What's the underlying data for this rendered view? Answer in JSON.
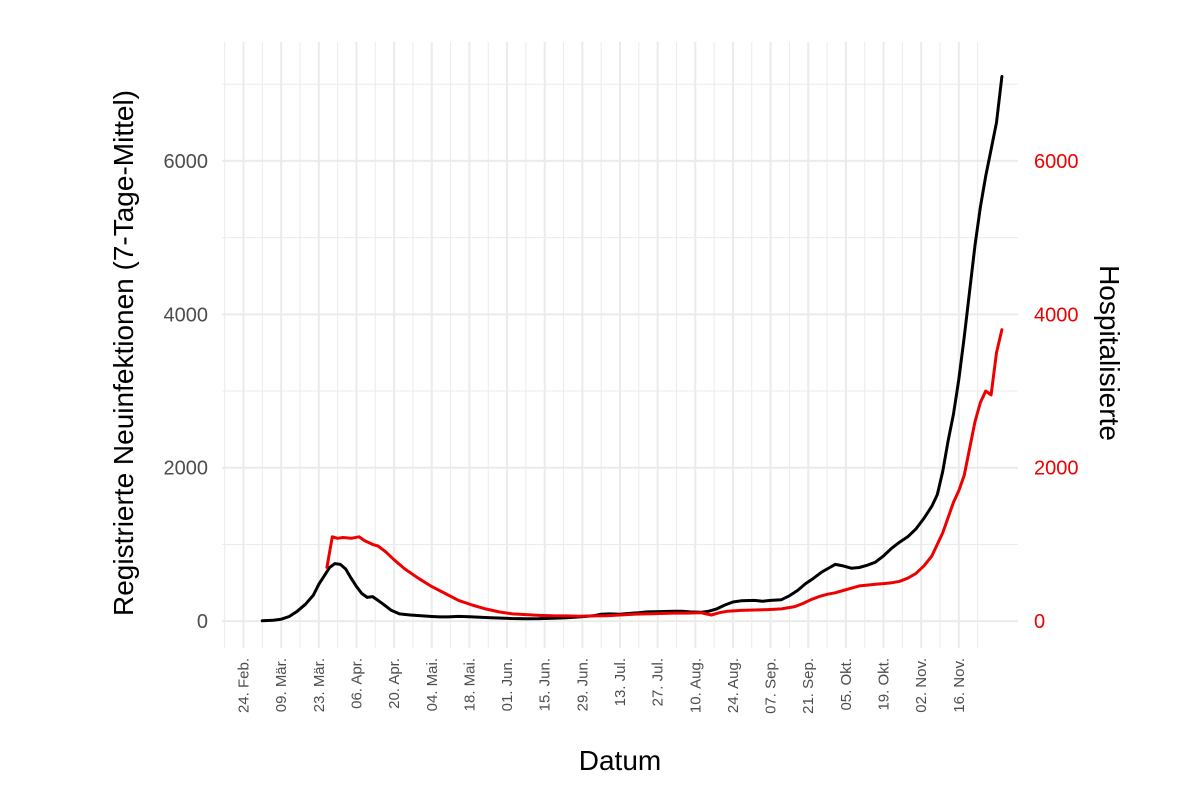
{
  "chart_data": {
    "type": "line",
    "xlabel": "Datum",
    "ylabel_left": "Registrierte Neuinfektionen (7-Tage-Mittel)",
    "ylabel_right": "Hospitalisierte",
    "ylim": [
      -350,
      7550
    ],
    "y_ticks": [
      0,
      2000,
      4000,
      6000
    ],
    "x_ticks": [
      "24. Feb.",
      "09. Mär.",
      "23. Mär.",
      "06. Apr.",
      "20. Apr.",
      "04. Mai.",
      "18. Mai.",
      "01. Jun.",
      "15. Jun.",
      "29. Jun.",
      "13. Jul.",
      "27. Jul.",
      "10. Aug.",
      "24. Aug.",
      "07. Sep.",
      "21. Sep.",
      "05. Okt.",
      "19. Okt.",
      "02. Nov.",
      "16. Nov."
    ],
    "x_unit": "Tage nach 24. Feb.",
    "grid": true,
    "colors": {
      "infections": "#000000",
      "hospitalized": "#ee0000",
      "grid": "#ebebeb",
      "tick_text": "#4d4d4d"
    },
    "series": [
      {
        "name": "Registrierte Neuinfektionen (7-Tage-Mittel)",
        "axis": "left",
        "points": [
          [
            7,
            5
          ],
          [
            11,
            12
          ],
          [
            14,
            25
          ],
          [
            17,
            60
          ],
          [
            20,
            130
          ],
          [
            23,
            220
          ],
          [
            26,
            340
          ],
          [
            28,
            480
          ],
          [
            30,
            590
          ],
          [
            32,
            700
          ],
          [
            34,
            750
          ],
          [
            36,
            740
          ],
          [
            38,
            680
          ],
          [
            40,
            560
          ],
          [
            42,
            450
          ],
          [
            44,
            360
          ],
          [
            46,
            310
          ],
          [
            48,
            320
          ],
          [
            50,
            270
          ],
          [
            52,
            220
          ],
          [
            55,
            140
          ],
          [
            58,
            95
          ],
          [
            62,
            80
          ],
          [
            66,
            70
          ],
          [
            70,
            60
          ],
          [
            73,
            55
          ],
          [
            76,
            55
          ],
          [
            80,
            62
          ],
          [
            84,
            58
          ],
          [
            88,
            50
          ],
          [
            92,
            45
          ],
          [
            96,
            40
          ],
          [
            100,
            35
          ],
          [
            105,
            32
          ],
          [
            110,
            33
          ],
          [
            115,
            38
          ],
          [
            120,
            45
          ],
          [
            125,
            55
          ],
          [
            130,
            70
          ],
          [
            133,
            90
          ],
          [
            136,
            95
          ],
          [
            140,
            90
          ],
          [
            143,
            100
          ],
          [
            147,
            110
          ],
          [
            150,
            120
          ],
          [
            155,
            125
          ],
          [
            160,
            130
          ],
          [
            163,
            128
          ],
          [
            166,
            120
          ],
          [
            170,
            115
          ],
          [
            173,
            130
          ],
          [
            176,
            160
          ],
          [
            179,
            210
          ],
          [
            182,
            250
          ],
          [
            185,
            265
          ],
          [
            190,
            270
          ],
          [
            193,
            260
          ],
          [
            196,
            270
          ],
          [
            200,
            280
          ],
          [
            203,
            330
          ],
          [
            206,
            400
          ],
          [
            209,
            490
          ],
          [
            212,
            560
          ],
          [
            215,
            640
          ],
          [
            218,
            700
          ],
          [
            220,
            740
          ],
          [
            223,
            720
          ],
          [
            226,
            690
          ],
          [
            229,
            700
          ],
          [
            232,
            730
          ],
          [
            235,
            770
          ],
          [
            238,
            850
          ],
          [
            241,
            950
          ],
          [
            244,
            1030
          ],
          [
            247,
            1100
          ],
          [
            250,
            1200
          ],
          [
            253,
            1340
          ],
          [
            256,
            1500
          ],
          [
            258,
            1650
          ],
          [
            260,
            1950
          ],
          [
            262,
            2350
          ],
          [
            264,
            2700
          ],
          [
            266,
            3150
          ],
          [
            268,
            3700
          ],
          [
            270,
            4300
          ],
          [
            272,
            4900
          ],
          [
            274,
            5400
          ],
          [
            276,
            5800
          ],
          [
            278,
            6150
          ],
          [
            280,
            6500
          ],
          [
            282,
            7100
          ]
        ]
      },
      {
        "name": "Hospitalisierte",
        "axis": "right",
        "points": [
          [
            31,
            700
          ],
          [
            32,
            900
          ],
          [
            33,
            1100
          ],
          [
            35,
            1080
          ],
          [
            37,
            1090
          ],
          [
            40,
            1080
          ],
          [
            43,
            1100
          ],
          [
            45,
            1050
          ],
          [
            48,
            1000
          ],
          [
            50,
            980
          ],
          [
            53,
            900
          ],
          [
            56,
            800
          ],
          [
            60,
            680
          ],
          [
            65,
            560
          ],
          [
            70,
            450
          ],
          [
            75,
            360
          ],
          [
            80,
            270
          ],
          [
            85,
            210
          ],
          [
            90,
            160
          ],
          [
            95,
            120
          ],
          [
            100,
            95
          ],
          [
            105,
            85
          ],
          [
            110,
            75
          ],
          [
            115,
            70
          ],
          [
            120,
            68
          ],
          [
            125,
            65
          ],
          [
            130,
            68
          ],
          [
            135,
            70
          ],
          [
            140,
            80
          ],
          [
            145,
            90
          ],
          [
            150,
            95
          ],
          [
            155,
            100
          ],
          [
            160,
            105
          ],
          [
            165,
            105
          ],
          [
            170,
            110
          ],
          [
            172,
            95
          ],
          [
            174,
            80
          ],
          [
            177,
            110
          ],
          [
            180,
            130
          ],
          [
            185,
            140
          ],
          [
            190,
            145
          ],
          [
            195,
            150
          ],
          [
            200,
            160
          ],
          [
            205,
            190
          ],
          [
            208,
            230
          ],
          [
            211,
            280
          ],
          [
            214,
            320
          ],
          [
            217,
            350
          ],
          [
            220,
            370
          ],
          [
            223,
            400
          ],
          [
            226,
            430
          ],
          [
            229,
            460
          ],
          [
            232,
            470
          ],
          [
            235,
            480
          ],
          [
            238,
            490
          ],
          [
            241,
            500
          ],
          [
            244,
            520
          ],
          [
            247,
            560
          ],
          [
            250,
            620
          ],
          [
            253,
            720
          ],
          [
            256,
            850
          ],
          [
            258,
            1000
          ],
          [
            260,
            1150
          ],
          [
            262,
            1350
          ],
          [
            264,
            1550
          ],
          [
            266,
            1700
          ],
          [
            268,
            1900
          ],
          [
            270,
            2250
          ],
          [
            272,
            2600
          ],
          [
            274,
            2850
          ],
          [
            276,
            3000
          ],
          [
            278,
            2950
          ],
          [
            280,
            3500
          ],
          [
            282,
            3800
          ]
        ]
      }
    ]
  }
}
